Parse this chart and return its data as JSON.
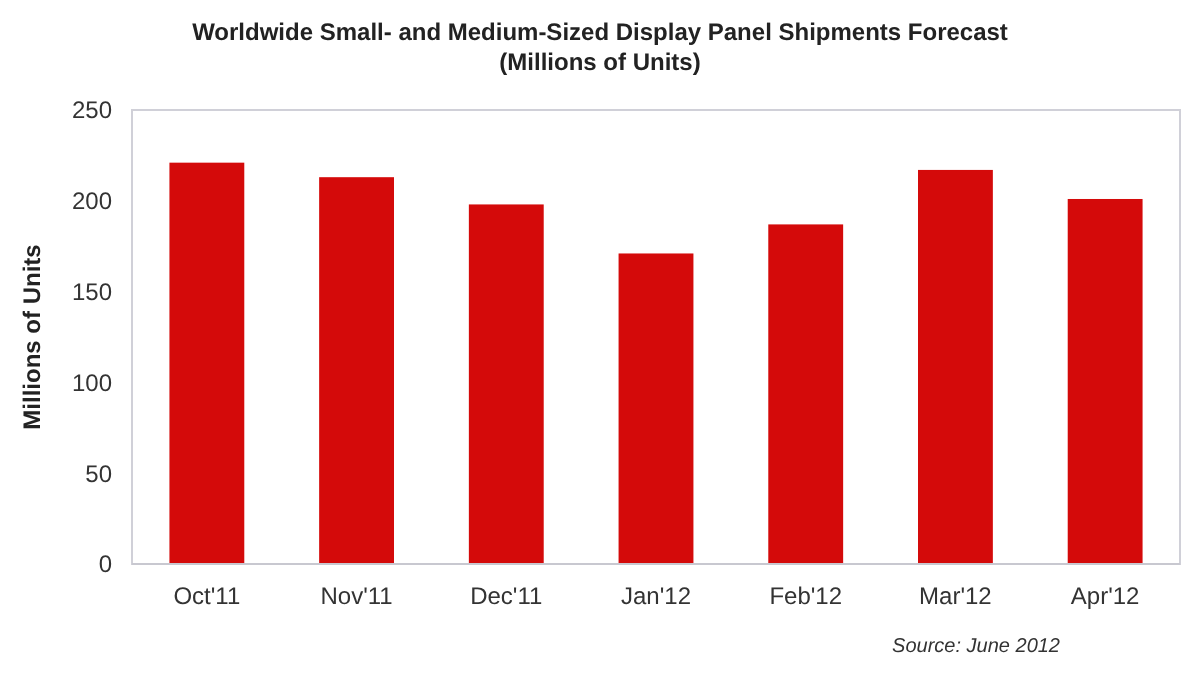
{
  "chart_data": {
    "type": "bar",
    "title": "Worldwide Small- and Medium-Sized Display Panel Shipments Forecast",
    "subtitle": "(Millions of Units)",
    "ylabel": "Millions of Units",
    "categories": [
      "Oct'11",
      "Nov'11",
      "Dec'11",
      "Jan'12",
      "Feb'12",
      "Mar'12",
      "Apr'12"
    ],
    "values": [
      221,
      213,
      198,
      171,
      187,
      217,
      201
    ],
    "color": "#d40a0a",
    "ylim": [
      0,
      250
    ],
    "yticks": [
      0,
      50,
      100,
      150,
      200,
      250
    ],
    "grid": false,
    "annotations": [
      "Source: June 2012"
    ]
  }
}
